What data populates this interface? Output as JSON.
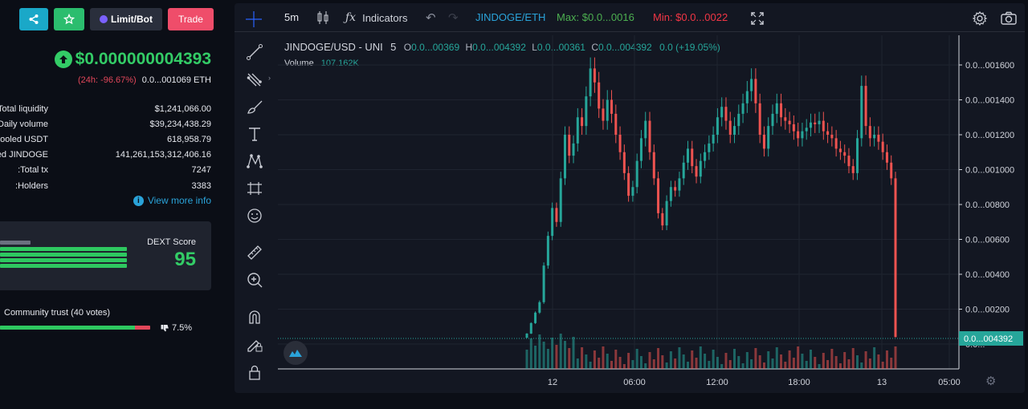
{
  "left_panel": {
    "buttons": {
      "limit_bot": "Limit/Bot",
      "trade": "Trade"
    },
    "price": "$0.000000004393",
    "change": "(24h: -96.67%)",
    "price_eth": "0.0...001069 ETH",
    "stats": [
      {
        "label": "Total liquidity:",
        "value": "$1,241,066.00"
      },
      {
        "label": "Daily volume:",
        "value": "$39,234,438.29"
      },
      {
        "label": "Pooled USDT:",
        "value": "618,958.79"
      },
      {
        "label": "Pooled JINDOGE:",
        "value": "141,261,153,312,406.16"
      },
      {
        "label": "Total tx:",
        "value": "7247"
      },
      {
        "label": "Holders:",
        "value": "3383"
      }
    ],
    "view_more": "View more info",
    "dext_label": "DEXT Score",
    "dext_score": "95",
    "community_trust": "Community trust (40 votes)",
    "trust_negative_pct": "7.5%",
    "trust_positive_fraction": 0.9
  },
  "chart_ui": {
    "interval": "5m",
    "indicators": "Indicators",
    "pair": "JINDOGE/ETH",
    "max": "Max: $0.0...0016",
    "min": "Min: $0.0...0022",
    "symbol": "JINDOGE/USD - UNI",
    "resolution": "5",
    "ohlc": {
      "o_label": "O",
      "o": "0.0...00369",
      "h_label": "H",
      "h": "0.0...004392",
      "l_label": "L",
      "l": "0.0...00361",
      "c_label": "C",
      "c": "0.0...004392",
      "chg": "0.0 (+19.05%)"
    },
    "volume_label": "Volume",
    "volume_value": "107.162K",
    "current_price": "0.0...004392",
    "colors": {
      "up": "#26a69a",
      "down": "#ef5350",
      "bg": "#131722",
      "max": "#4caf50",
      "min": "#f23645",
      "pair": "#2aa3d9"
    }
  },
  "chart_data": {
    "type": "line",
    "title": "JINDOGE/USD - UNI",
    "y_axis_ticks": [
      "0.0...",
      "0.0...00200",
      "0.0...00400",
      "0.0...00600",
      "0.0...00800",
      "0.0...001000",
      "0.0...001200",
      "0.0...001400",
      "0.0...001600"
    ],
    "y_axis_values": [
      0,
      0.002,
      0.004,
      0.006,
      0.008,
      0.01,
      0.012,
      0.014,
      0.016
    ],
    "x_axis_ticks": [
      "12",
      "06:00",
      "12:00",
      "18:00",
      "13",
      "05:00"
    ],
    "ylim": [
      0,
      0.0175
    ],
    "series": [
      {
        "values": [
          0.0006,
          0.0012,
          0.0018,
          0.0024,
          0.0045,
          0.0062,
          0.0078,
          0.007,
          0.0095,
          0.012,
          0.0108,
          0.0115,
          0.013,
          0.0125,
          0.0142,
          0.0158,
          0.015,
          0.0135,
          0.0128,
          0.014,
          0.0132,
          0.012,
          0.011,
          0.0098,
          0.0085,
          0.009,
          0.0105,
          0.0118,
          0.0128,
          0.011,
          0.0095,
          0.0075,
          0.0068,
          0.0082,
          0.009,
          0.0088,
          0.0095,
          0.0104,
          0.0112,
          0.0102,
          0.0096,
          0.0105,
          0.011,
          0.0115,
          0.012,
          0.013,
          0.0136,
          0.0128,
          0.012,
          0.0125,
          0.0132,
          0.0138,
          0.0145,
          0.0152,
          0.0138,
          0.012,
          0.0112,
          0.0125,
          0.0132,
          0.0138,
          0.013,
          0.0128,
          0.0126,
          0.0122,
          0.0118,
          0.0122,
          0.0124,
          0.0127,
          0.0126,
          0.0128,
          0.0122,
          0.012,
          0.0118,
          0.0112,
          0.011,
          0.0108,
          0.0102,
          0.0098,
          0.0118,
          0.0148,
          0.0125,
          0.0118,
          0.012,
          0.0116,
          0.011,
          0.0104,
          0.0095,
          0.0004
        ]
      }
    ]
  }
}
